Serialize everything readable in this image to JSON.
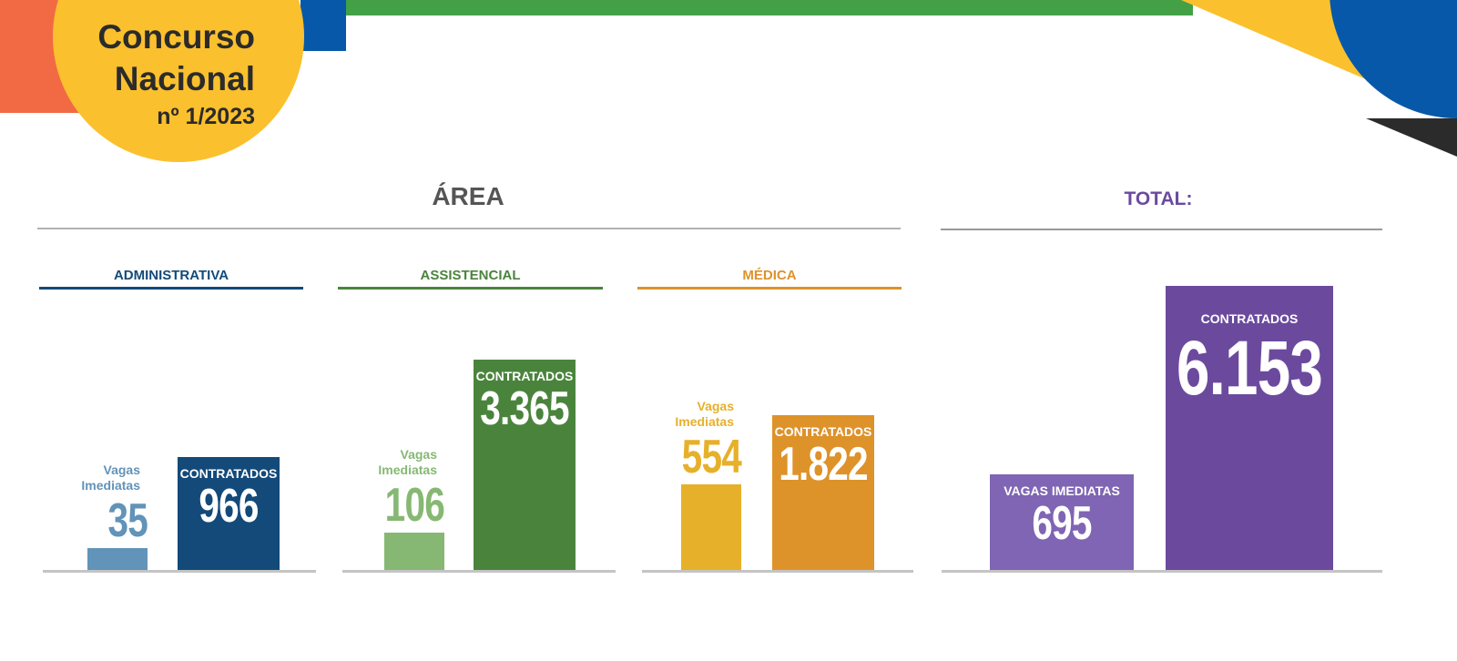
{
  "header": {
    "title_line1": "Concurso",
    "title_line2": "Nacional",
    "subtitle": "nº 1/2023"
  },
  "area_heading": "ÁREA",
  "chart_data": [
    {
      "type": "bar",
      "title": "ADMINISTRATIVA",
      "categories": [
        "Vagas Imediatas",
        "CONTRATADOS"
      ],
      "values": [
        35,
        966
      ],
      "colors": [
        "#6293b8",
        "#134a7a"
      ]
    },
    {
      "type": "bar",
      "title": "ASSISTENCIAL",
      "categories": [
        "Vagas Imediatas",
        "CONTRATADOS"
      ],
      "values": [
        106,
        3365
      ],
      "value_labels": [
        "106",
        "3.365"
      ],
      "colors": [
        "#86b873",
        "#4a843c"
      ]
    },
    {
      "type": "bar",
      "title": "MÉDICA",
      "categories": [
        "Vagas Imediatas",
        "CONTRATADOS"
      ],
      "values": [
        554,
        1822
      ],
      "value_labels": [
        "554",
        "1.822"
      ],
      "colors": [
        "#e6b02a",
        "#de922a"
      ]
    },
    {
      "type": "bar",
      "title": "TOTAL:",
      "categories": [
        "VAGAS IMEDIATAS",
        "CONTRATADOS"
      ],
      "values": [
        695,
        6153
      ],
      "value_labels": [
        "695",
        "6.153"
      ],
      "colors": [
        "#7f65b3",
        "#6b4a9e"
      ]
    }
  ]
}
